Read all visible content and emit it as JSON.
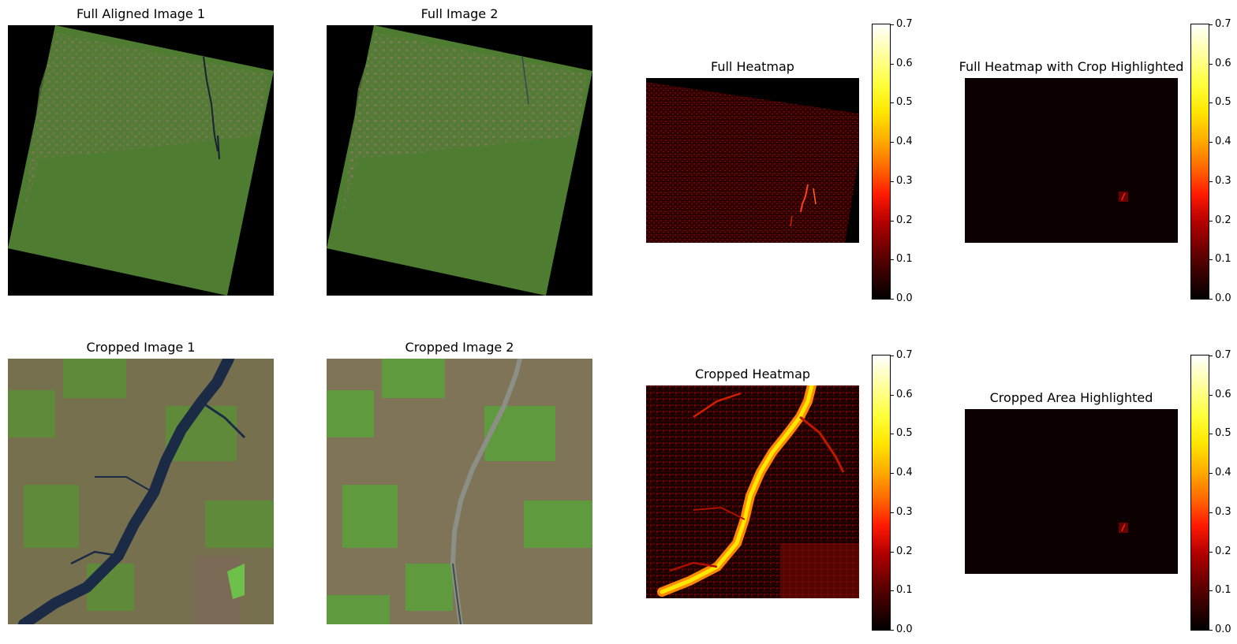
{
  "titles": {
    "full_aligned_1": "Full Aligned Image 1",
    "full_2": "Full Image 2",
    "full_heatmap": "Full Heatmap",
    "full_heatmap_crop": "Full Heatmap with Crop Highlighted",
    "cropped_1": "Cropped Image 1",
    "cropped_2": "Cropped Image 2",
    "cropped_heatmap": "Cropped Heatmap",
    "cropped_area": "Cropped Area Highlighted"
  },
  "colorbar": {
    "colormap": "hot",
    "range": [
      0.0,
      0.7
    ],
    "ticks": [
      "0.0",
      "0.1",
      "0.2",
      "0.3",
      "0.4",
      "0.5",
      "0.6",
      "0.7"
    ]
  },
  "colors": {
    "satellite_green": "#4e7d32",
    "heat_background": "#0d0000",
    "water": "#1c2b45"
  }
}
